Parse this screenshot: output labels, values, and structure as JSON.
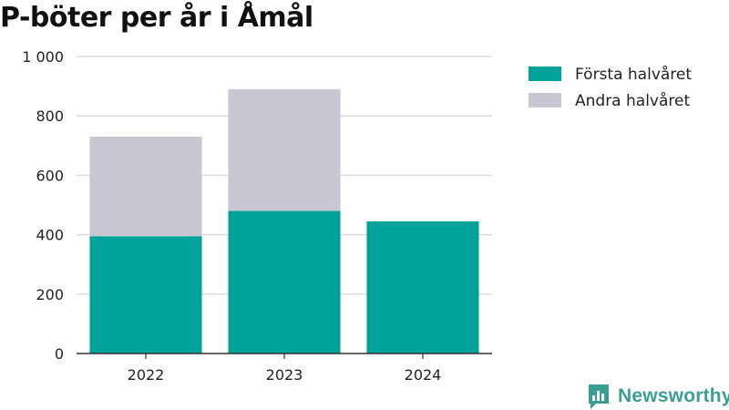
{
  "chart_data": {
    "type": "bar",
    "stacked": true,
    "title": "P-böter per år i Åmål",
    "categories": [
      "2022",
      "2023",
      "2024"
    ],
    "series": [
      {
        "name": "Första halvåret",
        "color": "#00a399",
        "values": [
          395,
          480,
          445
        ]
      },
      {
        "name": "Andra halvåret",
        "color": "#c8c7d2",
        "values": [
          335,
          410,
          null
        ]
      }
    ],
    "ylim": [
      0,
      1000
    ],
    "yticks": [
      {
        "value": 0,
        "label": "0"
      },
      {
        "value": 200,
        "label": "200"
      },
      {
        "value": 400,
        "label": "400"
      },
      {
        "value": 600,
        "label": "600"
      },
      {
        "value": 800,
        "label": "800"
      },
      {
        "value": 1000,
        "label": "1 000"
      }
    ],
    "grid": true,
    "legend_position": "right"
  },
  "brand": {
    "name": "Newsworthy",
    "color": "#3b9e93",
    "icon": "bar-chart-logo-icon"
  }
}
